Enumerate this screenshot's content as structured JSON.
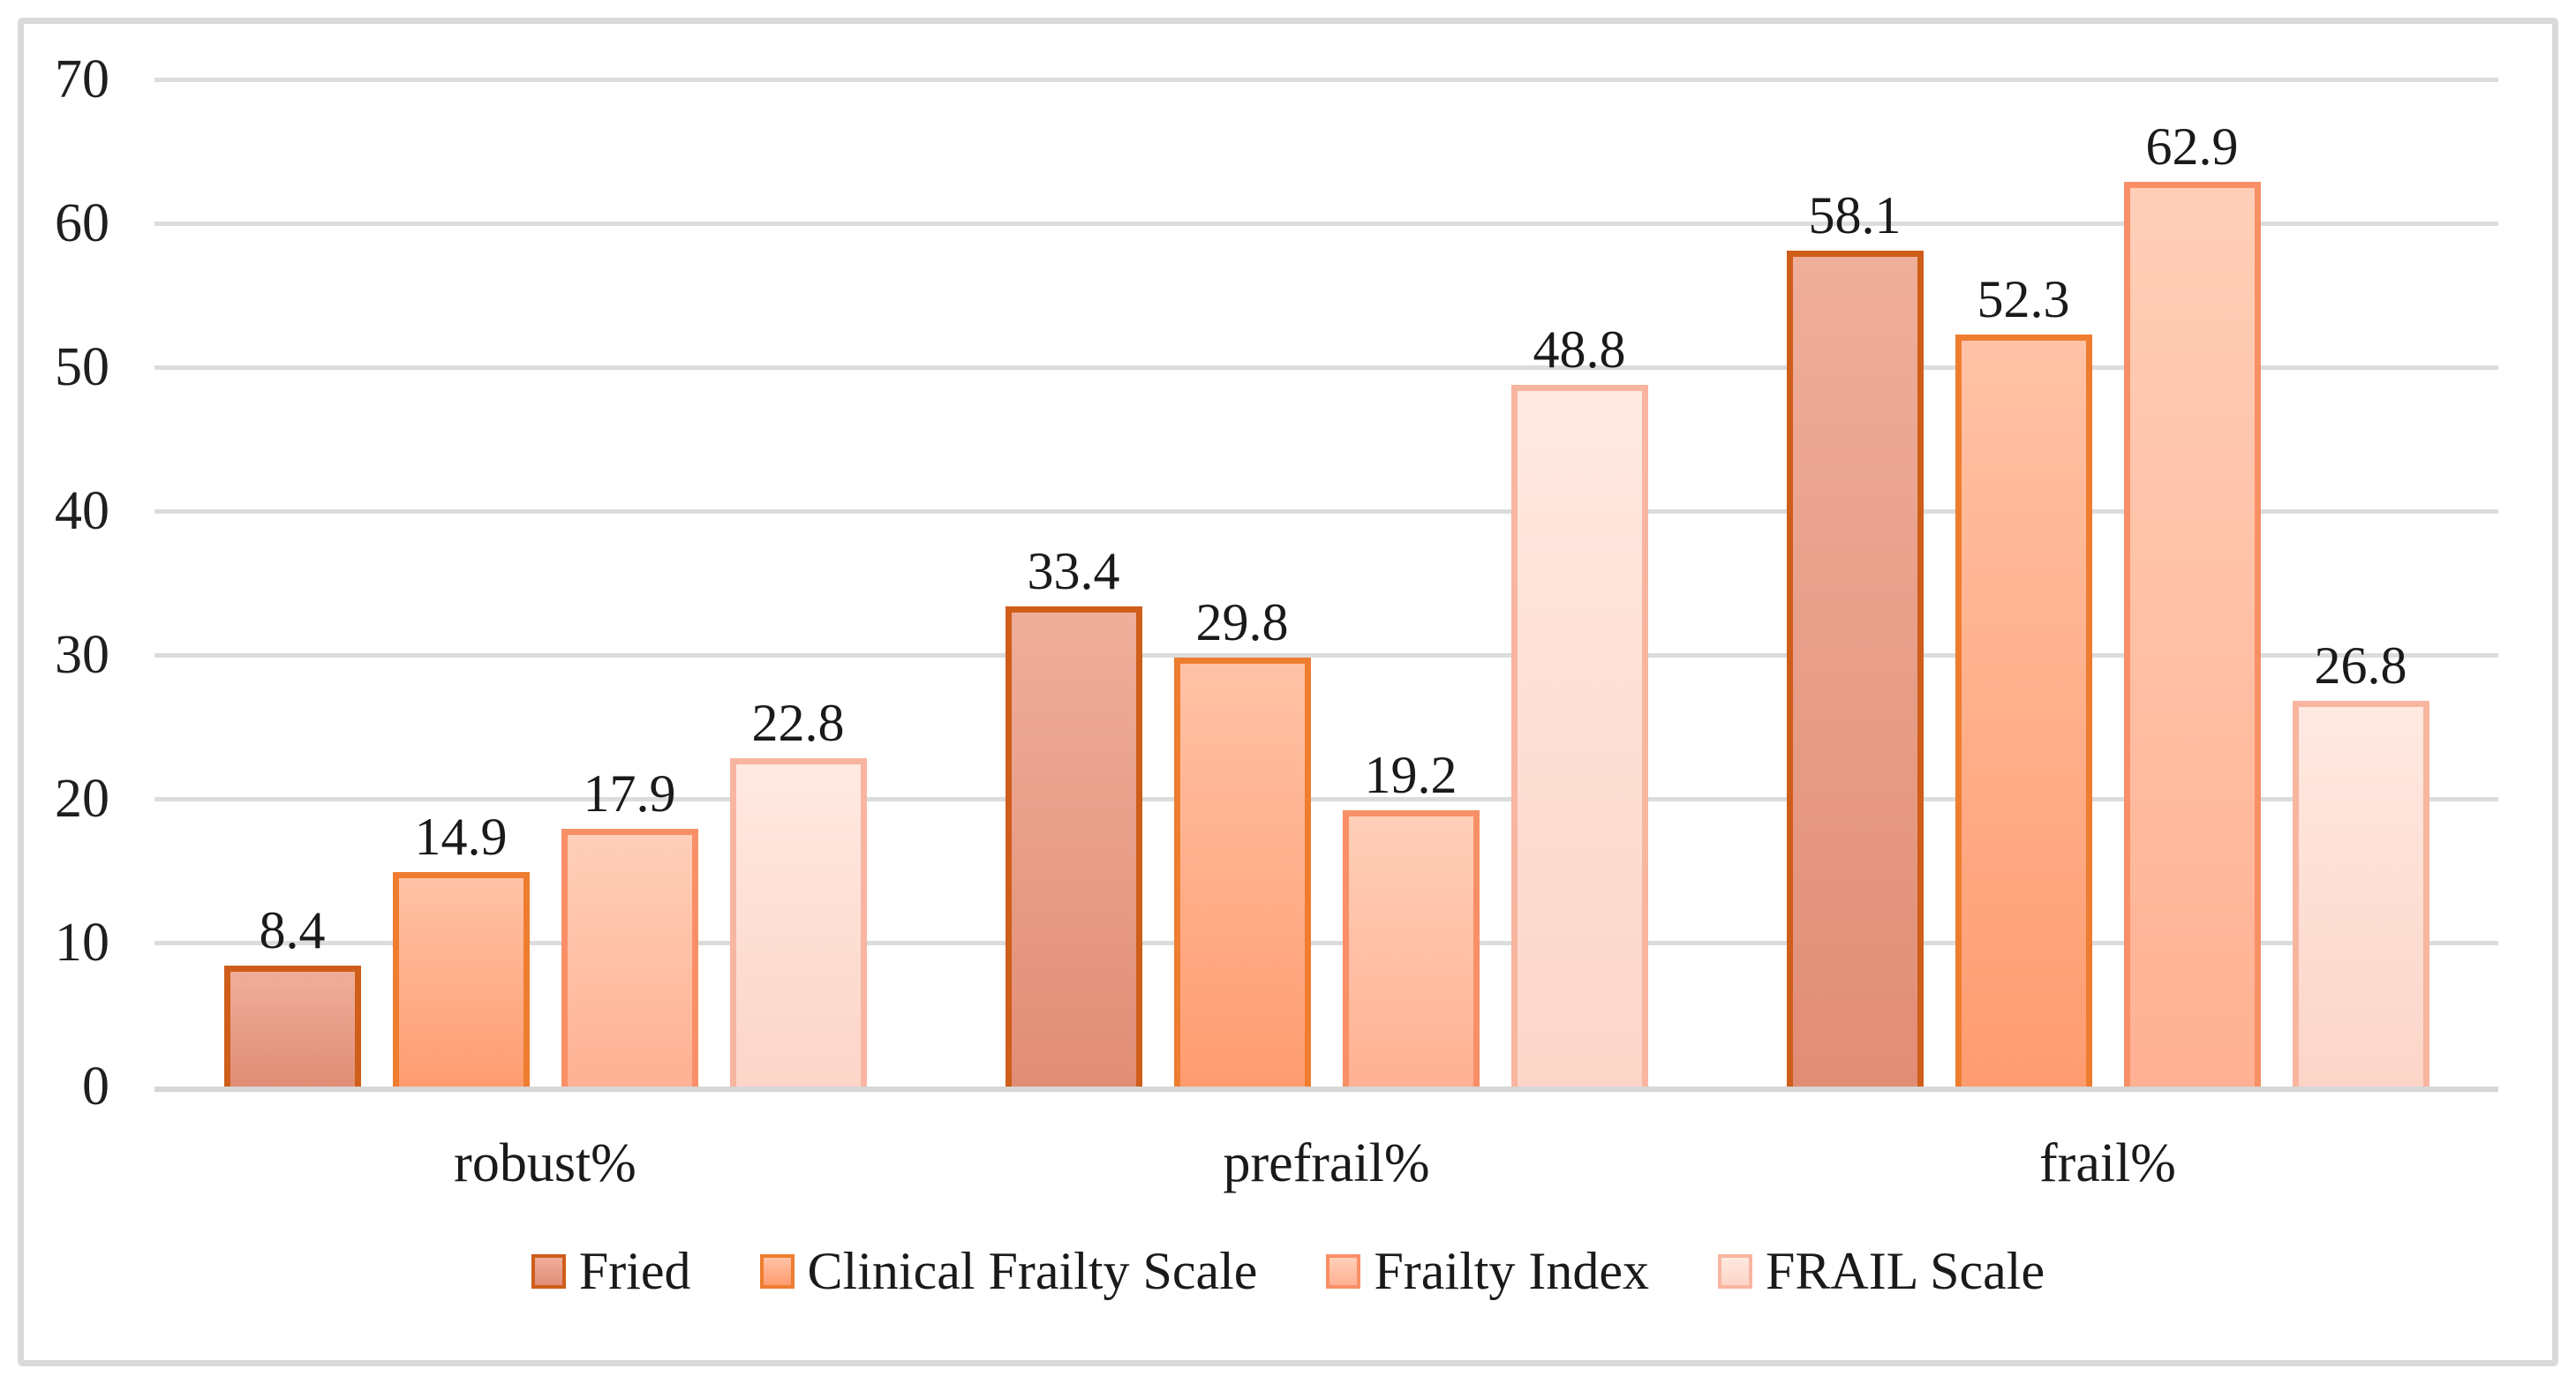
{
  "colors": {
    "background": "#ffffff",
    "frame_border": "#d9d9d9",
    "gridline": "#dcdcdc",
    "axis_line": "#d6d6d6",
    "text": "#1f1f1f"
  },
  "chart_data": {
    "type": "bar",
    "title": "",
    "xlabel": "",
    "ylabel": "",
    "categories": [
      "robust%",
      "prefrail%",
      "frail%"
    ],
    "series": [
      {
        "name": "Fried",
        "values": [
          8.4,
          33.4,
          58.1
        ],
        "border_color": "#ce5e1a",
        "fill_top": "#efae9a",
        "fill_bottom": "#e18d76"
      },
      {
        "name": "Clinical Frailty Scale",
        "values": [
          14.9,
          29.8,
          52.3
        ],
        "border_color": "#ee7d2f",
        "fill_top": "#ffc2a6",
        "fill_bottom": "#ff9c70"
      },
      {
        "name": "Frailty Index",
        "values": [
          17.9,
          19.2,
          62.9
        ],
        "border_color": "#f98f66",
        "fill_top": "#ffcfb8",
        "fill_bottom": "#ffb193"
      },
      {
        "name": "FRAIL Scale",
        "values": [
          22.8,
          48.8,
          26.8
        ],
        "border_color": "#f8b5a0",
        "fill_top": "#ffe9e1",
        "fill_bottom": "#fcd5c8"
      }
    ],
    "ylim": [
      0,
      70
    ],
    "yticks": [
      0,
      10,
      20,
      30,
      40,
      50,
      60,
      70
    ],
    "grid": true,
    "data_labels": true,
    "legend_position": "bottom"
  }
}
